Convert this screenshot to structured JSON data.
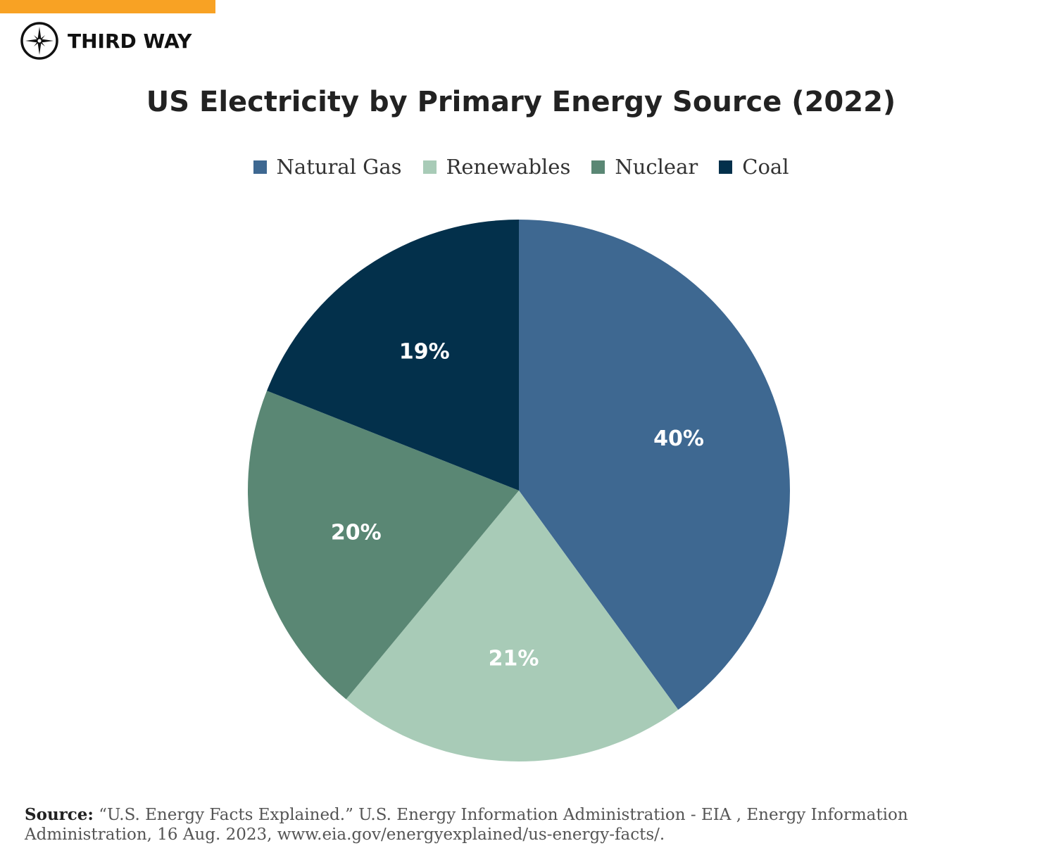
{
  "brand": {
    "name": "THIRD WAY",
    "accent": "#f8a224"
  },
  "chart_data": {
    "type": "pie",
    "title": "US Electricity by Primary Energy Source (2022)",
    "legend_position": "top",
    "start": "top, clockwise",
    "categories": [
      "Natural Gas",
      "Renewables",
      "Nuclear",
      "Coal"
    ],
    "values": [
      40,
      21,
      20,
      19
    ],
    "labels": [
      "40%",
      "21%",
      "20%",
      "19%"
    ],
    "colors": [
      "#3e6891",
      "#a8cbb7",
      "#5a8774",
      "#03304b"
    ]
  },
  "source": {
    "label": "Source:",
    "text": "“U.S. Energy Facts Explained.” U.S. Energy Information Administration - EIA , Energy Information Administration, 16 Aug. 2023, www.eia.gov/energyexplained/us-energy-facts/."
  }
}
